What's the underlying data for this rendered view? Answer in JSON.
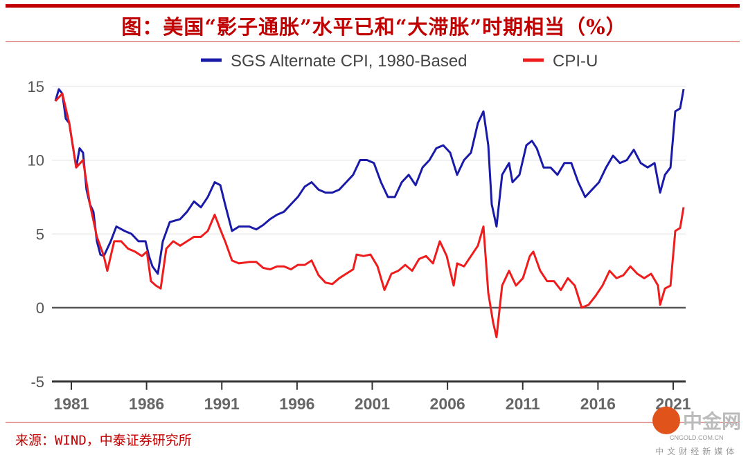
{
  "title": "图：美国“影子通胀”水平已和“大滞胀”时期相当（%）",
  "source": "来源：WIND，中泰证券研究所",
  "watermark": {
    "name": "中金网",
    "domain": "CNGOLD.COM.CN",
    "tagline": "中文财经新媒体"
  },
  "chart_data": {
    "type": "line",
    "title": "图：美国“影子通胀”水平已和“大滞胀”时期相当（%）",
    "xlabel": "",
    "ylabel": "",
    "xlim": [
      1979.8,
      2021.8
    ],
    "ylim": [
      -5,
      15
    ],
    "yticks": [
      -5,
      0,
      5,
      10,
      15
    ],
    "xticks": [
      1981,
      1986,
      1991,
      1996,
      2001,
      2006,
      2011,
      2016,
      2021
    ],
    "grid": true,
    "legend": "top-center",
    "series": [
      {
        "name": "SGS Alternate CPI, 1980-Based",
        "color": "#1a1aa8",
        "points": [
          [
            1979.94,
            14
          ],
          [
            1980.17,
            14.8
          ],
          [
            1980.4,
            14.5
          ],
          [
            1980.63,
            12.8
          ],
          [
            1980.86,
            12.5
          ],
          [
            1981.09,
            11
          ],
          [
            1981.32,
            9.5
          ],
          [
            1981.55,
            10.8
          ],
          [
            1981.78,
            10.5
          ],
          [
            1982.01,
            8
          ],
          [
            1982.24,
            7
          ],
          [
            1982.47,
            6.5
          ],
          [
            1982.7,
            4.5
          ],
          [
            1982.93,
            3.6
          ],
          [
            1983.16,
            3.5
          ],
          [
            1983.39,
            4
          ],
          [
            1983.62,
            4.5
          ],
          [
            1983.99,
            5.5
          ],
          [
            1984.54,
            5.2
          ],
          [
            1985.0,
            5
          ],
          [
            1985.46,
            4.5
          ],
          [
            1985.93,
            4.5
          ],
          [
            1986.16,
            3.5
          ],
          [
            1986.39,
            2.8
          ],
          [
            1986.75,
            2.3
          ],
          [
            1987.08,
            4.5
          ],
          [
            1987.54,
            5.8
          ],
          [
            1988.23,
            6
          ],
          [
            1988.69,
            6.5
          ],
          [
            1989.15,
            7.2
          ],
          [
            1989.61,
            6.8
          ],
          [
            1990.07,
            7.5
          ],
          [
            1990.53,
            8.5
          ],
          [
            1990.9,
            8.3
          ],
          [
            1991.22,
            7
          ],
          [
            1991.68,
            5.2
          ],
          [
            1992.14,
            5.5
          ],
          [
            1992.83,
            5.5
          ],
          [
            1993.29,
            5.3
          ],
          [
            1993.75,
            5.6
          ],
          [
            1994.21,
            6
          ],
          [
            1994.67,
            6.3
          ],
          [
            1995.13,
            6.5
          ],
          [
            1995.59,
            7
          ],
          [
            1996.05,
            7.5
          ],
          [
            1996.51,
            8.2
          ],
          [
            1996.97,
            8.5
          ],
          [
            1997.43,
            8
          ],
          [
            1997.89,
            7.8
          ],
          [
            1998.35,
            7.8
          ],
          [
            1998.81,
            8
          ],
          [
            1999.27,
            8.5
          ],
          [
            1999.73,
            9
          ],
          [
            2000.19,
            10
          ],
          [
            2000.65,
            10
          ],
          [
            2001.11,
            9.8
          ],
          [
            2001.58,
            8.5
          ],
          [
            2002.04,
            7.5
          ],
          [
            2002.5,
            7.5
          ],
          [
            2002.96,
            8.5
          ],
          [
            2003.42,
            9
          ],
          [
            2003.88,
            8.3
          ],
          [
            2004.34,
            9.5
          ],
          [
            2004.8,
            10
          ],
          [
            2005.26,
            10.8
          ],
          [
            2005.72,
            11
          ],
          [
            2006.18,
            10.5
          ],
          [
            2006.64,
            9
          ],
          [
            2007.1,
            10
          ],
          [
            2007.56,
            10.5
          ],
          [
            2008.02,
            12.5
          ],
          [
            2008.39,
            13.3
          ],
          [
            2008.71,
            11
          ],
          [
            2008.94,
            7
          ],
          [
            2009.26,
            5.5
          ],
          [
            2009.63,
            9
          ],
          [
            2010.09,
            9.8
          ],
          [
            2010.32,
            8.5
          ],
          [
            2010.78,
            9
          ],
          [
            2011.24,
            11
          ],
          [
            2011.61,
            11.3
          ],
          [
            2011.93,
            10.8
          ],
          [
            2012.39,
            9.5
          ],
          [
            2012.85,
            9.5
          ],
          [
            2013.31,
            9
          ],
          [
            2013.77,
            9.8
          ],
          [
            2014.23,
            9.8
          ],
          [
            2014.69,
            8.5
          ],
          [
            2015.15,
            7.5
          ],
          [
            2015.61,
            8
          ],
          [
            2016.07,
            8.5
          ],
          [
            2016.54,
            9.5
          ],
          [
            2017.0,
            10.3
          ],
          [
            2017.46,
            9.8
          ],
          [
            2017.92,
            10
          ],
          [
            2018.38,
            10.7
          ],
          [
            2018.84,
            9.8
          ],
          [
            2019.3,
            9.5
          ],
          [
            2019.76,
            9.8
          ],
          [
            2020.13,
            7.8
          ],
          [
            2020.45,
            9
          ],
          [
            2020.82,
            9.5
          ],
          [
            2021.14,
            13.3
          ],
          [
            2021.46,
            13.5
          ],
          [
            2021.69,
            14.8
          ]
        ]
      },
      {
        "name": "CPI-U",
        "color": "#ee1c1c",
        "points": [
          [
            1979.94,
            14
          ],
          [
            1980.4,
            14.5
          ],
          [
            1980.86,
            12.5
          ],
          [
            1981.32,
            9.5
          ],
          [
            1981.78,
            10
          ],
          [
            1982.24,
            7
          ],
          [
            1982.7,
            4.8
          ],
          [
            1983.16,
            3.5
          ],
          [
            1983.39,
            2.5
          ],
          [
            1983.85,
            4.5
          ],
          [
            1984.31,
            4.5
          ],
          [
            1984.77,
            4
          ],
          [
            1985.23,
            3.8
          ],
          [
            1985.69,
            3.5
          ],
          [
            1986.02,
            3.8
          ],
          [
            1986.29,
            1.8
          ],
          [
            1986.62,
            1.5
          ],
          [
            1986.94,
            1.3
          ],
          [
            1987.31,
            4
          ],
          [
            1987.77,
            4.5
          ],
          [
            1988.23,
            4.2
          ],
          [
            1988.69,
            4.5
          ],
          [
            1989.15,
            4.8
          ],
          [
            1989.61,
            4.8
          ],
          [
            1990.07,
            5.2
          ],
          [
            1990.53,
            6.3
          ],
          [
            1990.9,
            5.3
          ],
          [
            1991.22,
            4.5
          ],
          [
            1991.68,
            3.2
          ],
          [
            1992.14,
            3
          ],
          [
            1992.83,
            3.1
          ],
          [
            1993.29,
            3.1
          ],
          [
            1993.75,
            2.7
          ],
          [
            1994.21,
            2.6
          ],
          [
            1994.67,
            2.8
          ],
          [
            1995.13,
            2.8
          ],
          [
            1995.59,
            2.6
          ],
          [
            1996.05,
            2.9
          ],
          [
            1996.51,
            2.9
          ],
          [
            1996.97,
            3.2
          ],
          [
            1997.43,
            2.2
          ],
          [
            1997.89,
            1.7
          ],
          [
            1998.35,
            1.6
          ],
          [
            1998.81,
            2
          ],
          [
            1999.27,
            2.3
          ],
          [
            1999.73,
            2.6
          ],
          [
            1999.96,
            3.6
          ],
          [
            2000.42,
            3.5
          ],
          [
            2000.88,
            3.6
          ],
          [
            2001.35,
            2.8
          ],
          [
            2001.81,
            1.2
          ],
          [
            2002.27,
            2.3
          ],
          [
            2002.73,
            2.5
          ],
          [
            2003.19,
            2.9
          ],
          [
            2003.65,
            2.5
          ],
          [
            2004.11,
            3.3
          ],
          [
            2004.57,
            3.5
          ],
          [
            2005.03,
            3
          ],
          [
            2005.49,
            4.5
          ],
          [
            2005.95,
            3.5
          ],
          [
            2006.41,
            1.5
          ],
          [
            2006.64,
            3
          ],
          [
            2007.1,
            2.8
          ],
          [
            2007.56,
            3.5
          ],
          [
            2008.02,
            4.2
          ],
          [
            2008.39,
            5.5
          ],
          [
            2008.71,
            1
          ],
          [
            2009.03,
            -1
          ],
          [
            2009.26,
            -2
          ],
          [
            2009.63,
            1.5
          ],
          [
            2010.09,
            2.5
          ],
          [
            2010.55,
            1.5
          ],
          [
            2011.01,
            2
          ],
          [
            2011.47,
            3.5
          ],
          [
            2011.7,
            3.8
          ],
          [
            2012.16,
            2.5
          ],
          [
            2012.62,
            1.8
          ],
          [
            2013.08,
            1.8
          ],
          [
            2013.54,
            1.2
          ],
          [
            2014.0,
            2
          ],
          [
            2014.46,
            1.5
          ],
          [
            2014.92,
            0
          ],
          [
            2015.38,
            0.2
          ],
          [
            2015.84,
            0.8
          ],
          [
            2016.3,
            1.5
          ],
          [
            2016.77,
            2.5
          ],
          [
            2017.23,
            2
          ],
          [
            2017.69,
            2.2
          ],
          [
            2018.15,
            2.8
          ],
          [
            2018.61,
            2.3
          ],
          [
            2019.07,
            2
          ],
          [
            2019.53,
            2.3
          ],
          [
            2019.99,
            1.5
          ],
          [
            2020.13,
            0.2
          ],
          [
            2020.45,
            1.3
          ],
          [
            2020.82,
            1.5
          ],
          [
            2021.14,
            5.2
          ],
          [
            2021.46,
            5.4
          ],
          [
            2021.69,
            6.8
          ]
        ]
      }
    ]
  }
}
